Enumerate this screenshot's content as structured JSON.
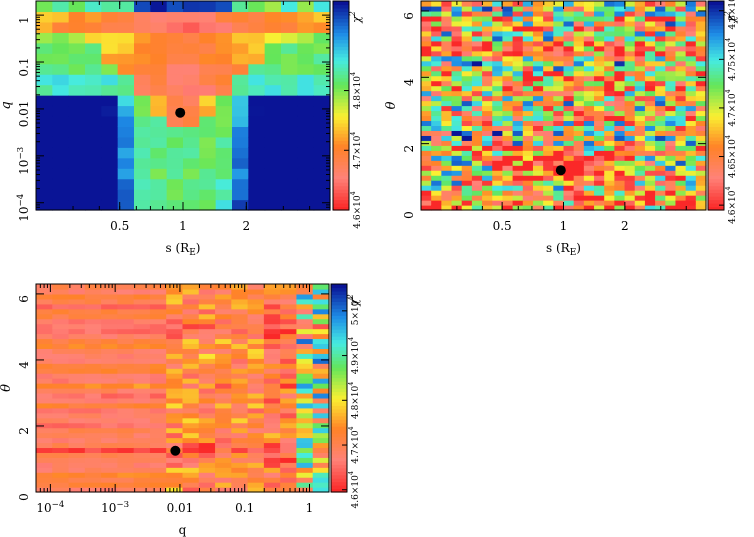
{
  "chart_data": [
    {
      "id": "s-q",
      "type": "heatmap",
      "xlabel": "s (R",
      "xlabel_sub": "E",
      "xlabel_end": ")",
      "ylabel": "q",
      "x_scale": "log",
      "y_scale": "log",
      "xlim": [
        0.2,
        5.0
      ],
      "ylim": [
        7e-05,
        2.0
      ],
      "x_ticks": [
        {
          "v": 0.5,
          "label": "0.5"
        },
        {
          "v": 1,
          "label": "1"
        },
        {
          "v": 2,
          "label": "2"
        }
      ],
      "y_ticks": [
        {
          "v": 0.0001,
          "label": "10",
          "sup": "−4"
        },
        {
          "v": 0.001,
          "label": "10",
          "sup": "−3"
        },
        {
          "v": 0.01,
          "label": "0.01"
        },
        {
          "v": 0.1,
          "label": "0.1"
        },
        {
          "v": 1,
          "label": "1"
        }
      ],
      "colorbar": {
        "label": "χ",
        "label_sup": "2",
        "range": [
          46000,
          49500
        ],
        "ticks": [
          {
            "v": 46000,
            "label": "4.6×10",
            "sup": "4"
          },
          {
            "v": 47000,
            "label": "4.7×10",
            "sup": "4"
          },
          {
            "v": 48000,
            "label": "4.8×10",
            "sup": "4"
          }
        ]
      },
      "best_fit": {
        "x": 0.97,
        "y": 0.0083
      }
    },
    {
      "id": "s-theta",
      "type": "heatmap",
      "xlabel": "s (R",
      "xlabel_sub": "E",
      "xlabel_end": ")",
      "ylabel": "θ",
      "x_scale": "log",
      "y_scale": "linear",
      "xlim": [
        0.2,
        5.0
      ],
      "ylim": [
        0,
        6.3
      ],
      "x_ticks": [
        {
          "v": 0.5,
          "label": "0.5"
        },
        {
          "v": 1,
          "label": "1"
        },
        {
          "v": 2,
          "label": "2"
        }
      ],
      "y_ticks": [
        {
          "v": 0,
          "label": "0"
        },
        {
          "v": 2,
          "label": "2"
        },
        {
          "v": 4,
          "label": "4"
        },
        {
          "v": 6,
          "label": "6"
        }
      ],
      "colorbar": {
        "label": "χ",
        "label_sup": "2",
        "range": [
          45950,
          48100
        ],
        "ticks": [
          {
            "v": 46000,
            "label": "4.6×10",
            "sup": "4"
          },
          {
            "v": 46500,
            "label": "4.65×10",
            "sup": "4"
          },
          {
            "v": 47000,
            "label": "4.7×10",
            "sup": "4"
          },
          {
            "v": 47500,
            "label": "4.75×10",
            "sup": "4"
          },
          {
            "v": 48000,
            "label": "4.8×10",
            "sup": "4"
          }
        ]
      },
      "best_fit": {
        "x": 0.97,
        "y": 1.2
      }
    },
    {
      "id": "q-theta",
      "type": "heatmap",
      "xlabel": "q",
      "ylabel": "θ",
      "x_scale": "log",
      "y_scale": "linear",
      "xlim": [
        6e-05,
        2.0
      ],
      "ylim": [
        0,
        6.3
      ],
      "x_ticks": [
        {
          "v": 0.0001,
          "label": "10",
          "sup": "−4"
        },
        {
          "v": 0.001,
          "label": "10",
          "sup": "−3"
        },
        {
          "v": 0.01,
          "label": "0.01"
        },
        {
          "v": 0.1,
          "label": "0.1"
        },
        {
          "v": 1,
          "label": "1"
        }
      ],
      "y_ticks": [
        {
          "v": 0,
          "label": "0"
        },
        {
          "v": 2,
          "label": "2"
        },
        {
          "v": 4,
          "label": "4"
        },
        {
          "v": 6,
          "label": "6"
        }
      ],
      "colorbar": {
        "label": "χ",
        "label_sup": "2",
        "range": [
          45950,
          50600
        ],
        "ticks": [
          {
            "v": 46000,
            "label": "4.6×10",
            "sup": "4"
          },
          {
            "v": 47000,
            "label": "4.7×10",
            "sup": "4"
          },
          {
            "v": 48000,
            "label": "4.8×10",
            "sup": "4"
          },
          {
            "v": 49000,
            "label": "4.9×10",
            "sup": "4"
          },
          {
            "v": 50000,
            "label": "5×10",
            "sup": "4"
          }
        ]
      },
      "best_fit": {
        "x": 0.0085,
        "y": 1.25
      }
    }
  ]
}
